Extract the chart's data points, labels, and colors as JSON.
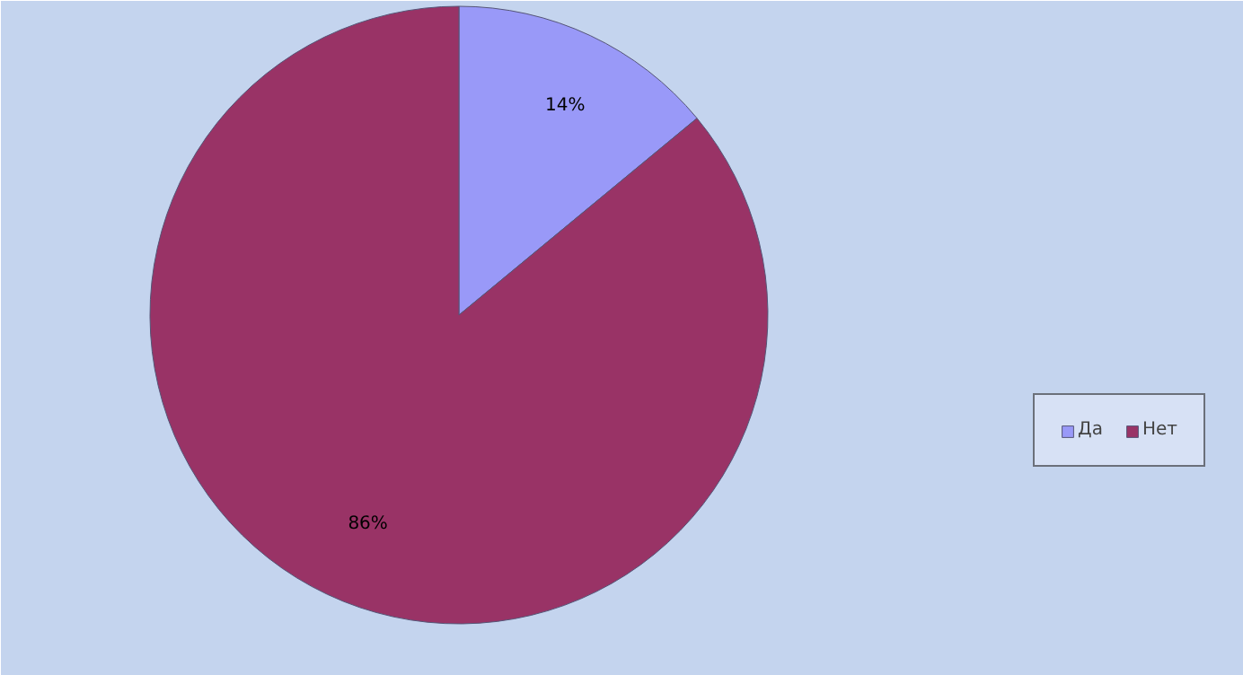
{
  "chart_data": {
    "type": "pie",
    "categories": [
      "Да",
      "Нет"
    ],
    "values": [
      14,
      86
    ],
    "colors": [
      "#9999f8",
      "#993366"
    ],
    "value_labels": [
      "14%",
      "86%"
    ],
    "legend": "right"
  }
}
